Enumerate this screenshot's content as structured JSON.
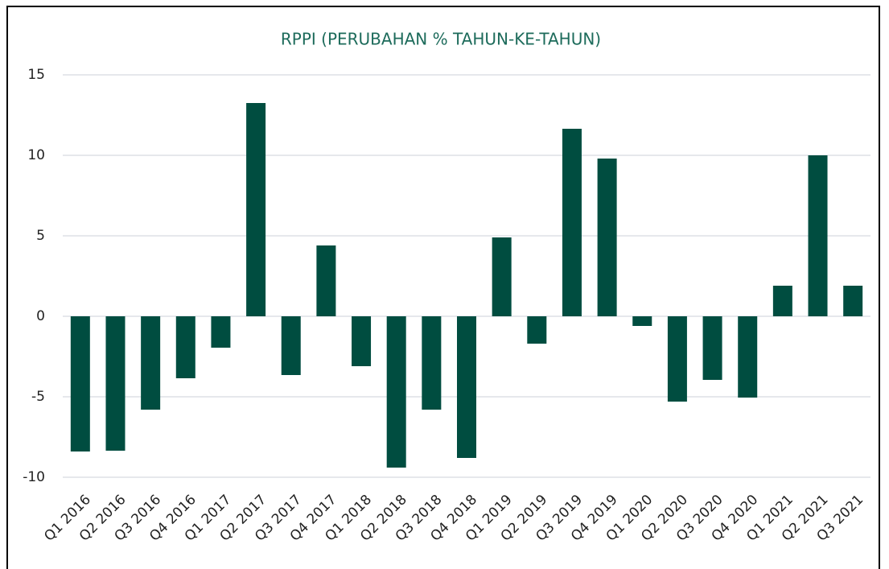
{
  "chart_data": {
    "type": "bar",
    "title": "RPPI (PERUBAHAN % TAHUN-KE-TAHUN)",
    "categories": [
      "Q1 2016",
      "Q2 2016",
      "Q3 2016",
      "Q4 2016",
      "Q1 2017",
      "Q2 2017",
      "Q3 2017",
      "Q4 2017",
      "Q1 2018",
      "Q2 2018",
      "Q3 2018",
      "Q4 2018",
      "Q1 2019",
      "Q2 2019",
      "Q3 2019",
      "Q4 2019",
      "Q1 2020",
      "Q2 2020",
      "Q3 2020",
      "Q4 2020",
      "Q1 2021",
      "Q2 2021",
      "Q3 2021"
    ],
    "values": [
      -8.4,
      -8.35,
      -5.8,
      -3.85,
      -1.95,
      13.25,
      -3.65,
      4.4,
      -3.1,
      -9.4,
      -5.8,
      -8.8,
      4.9,
      -1.7,
      11.65,
      9.8,
      -0.6,
      -5.3,
      -3.95,
      -5.05,
      1.9,
      10.0,
      1.9
    ],
    "color": "#004d40",
    "ylim": [
      -10,
      15
    ],
    "yticks": [
      15,
      10,
      5,
      0,
      -5,
      -10
    ],
    "grid": true
  }
}
